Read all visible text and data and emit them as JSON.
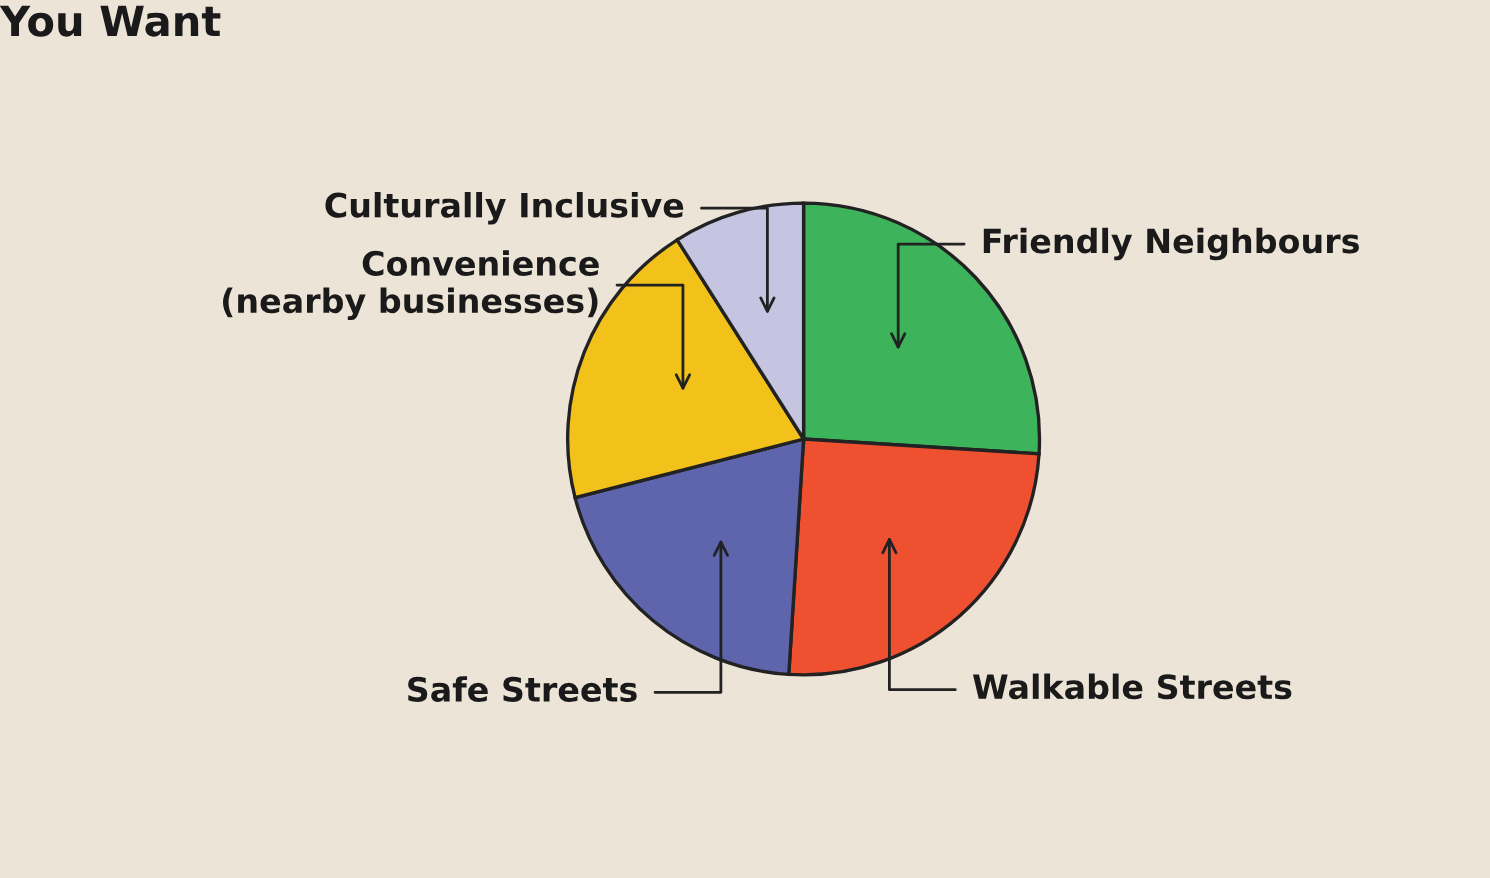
{
  "chart_data": {
    "type": "pie",
    "title": "You Want",
    "categories": [
      "Friendly Neighbours",
      "Walkable Streets",
      "Safe Streets",
      "Convenience\n(nearby businesses)",
      "Culturally Inclusive"
    ],
    "values": [
      26,
      25,
      20,
      20,
      9
    ],
    "colors": [
      "#3db35b",
      "#ef5030",
      "#5e65ad",
      "#f2c21b",
      "#c5c5e2"
    ]
  }
}
